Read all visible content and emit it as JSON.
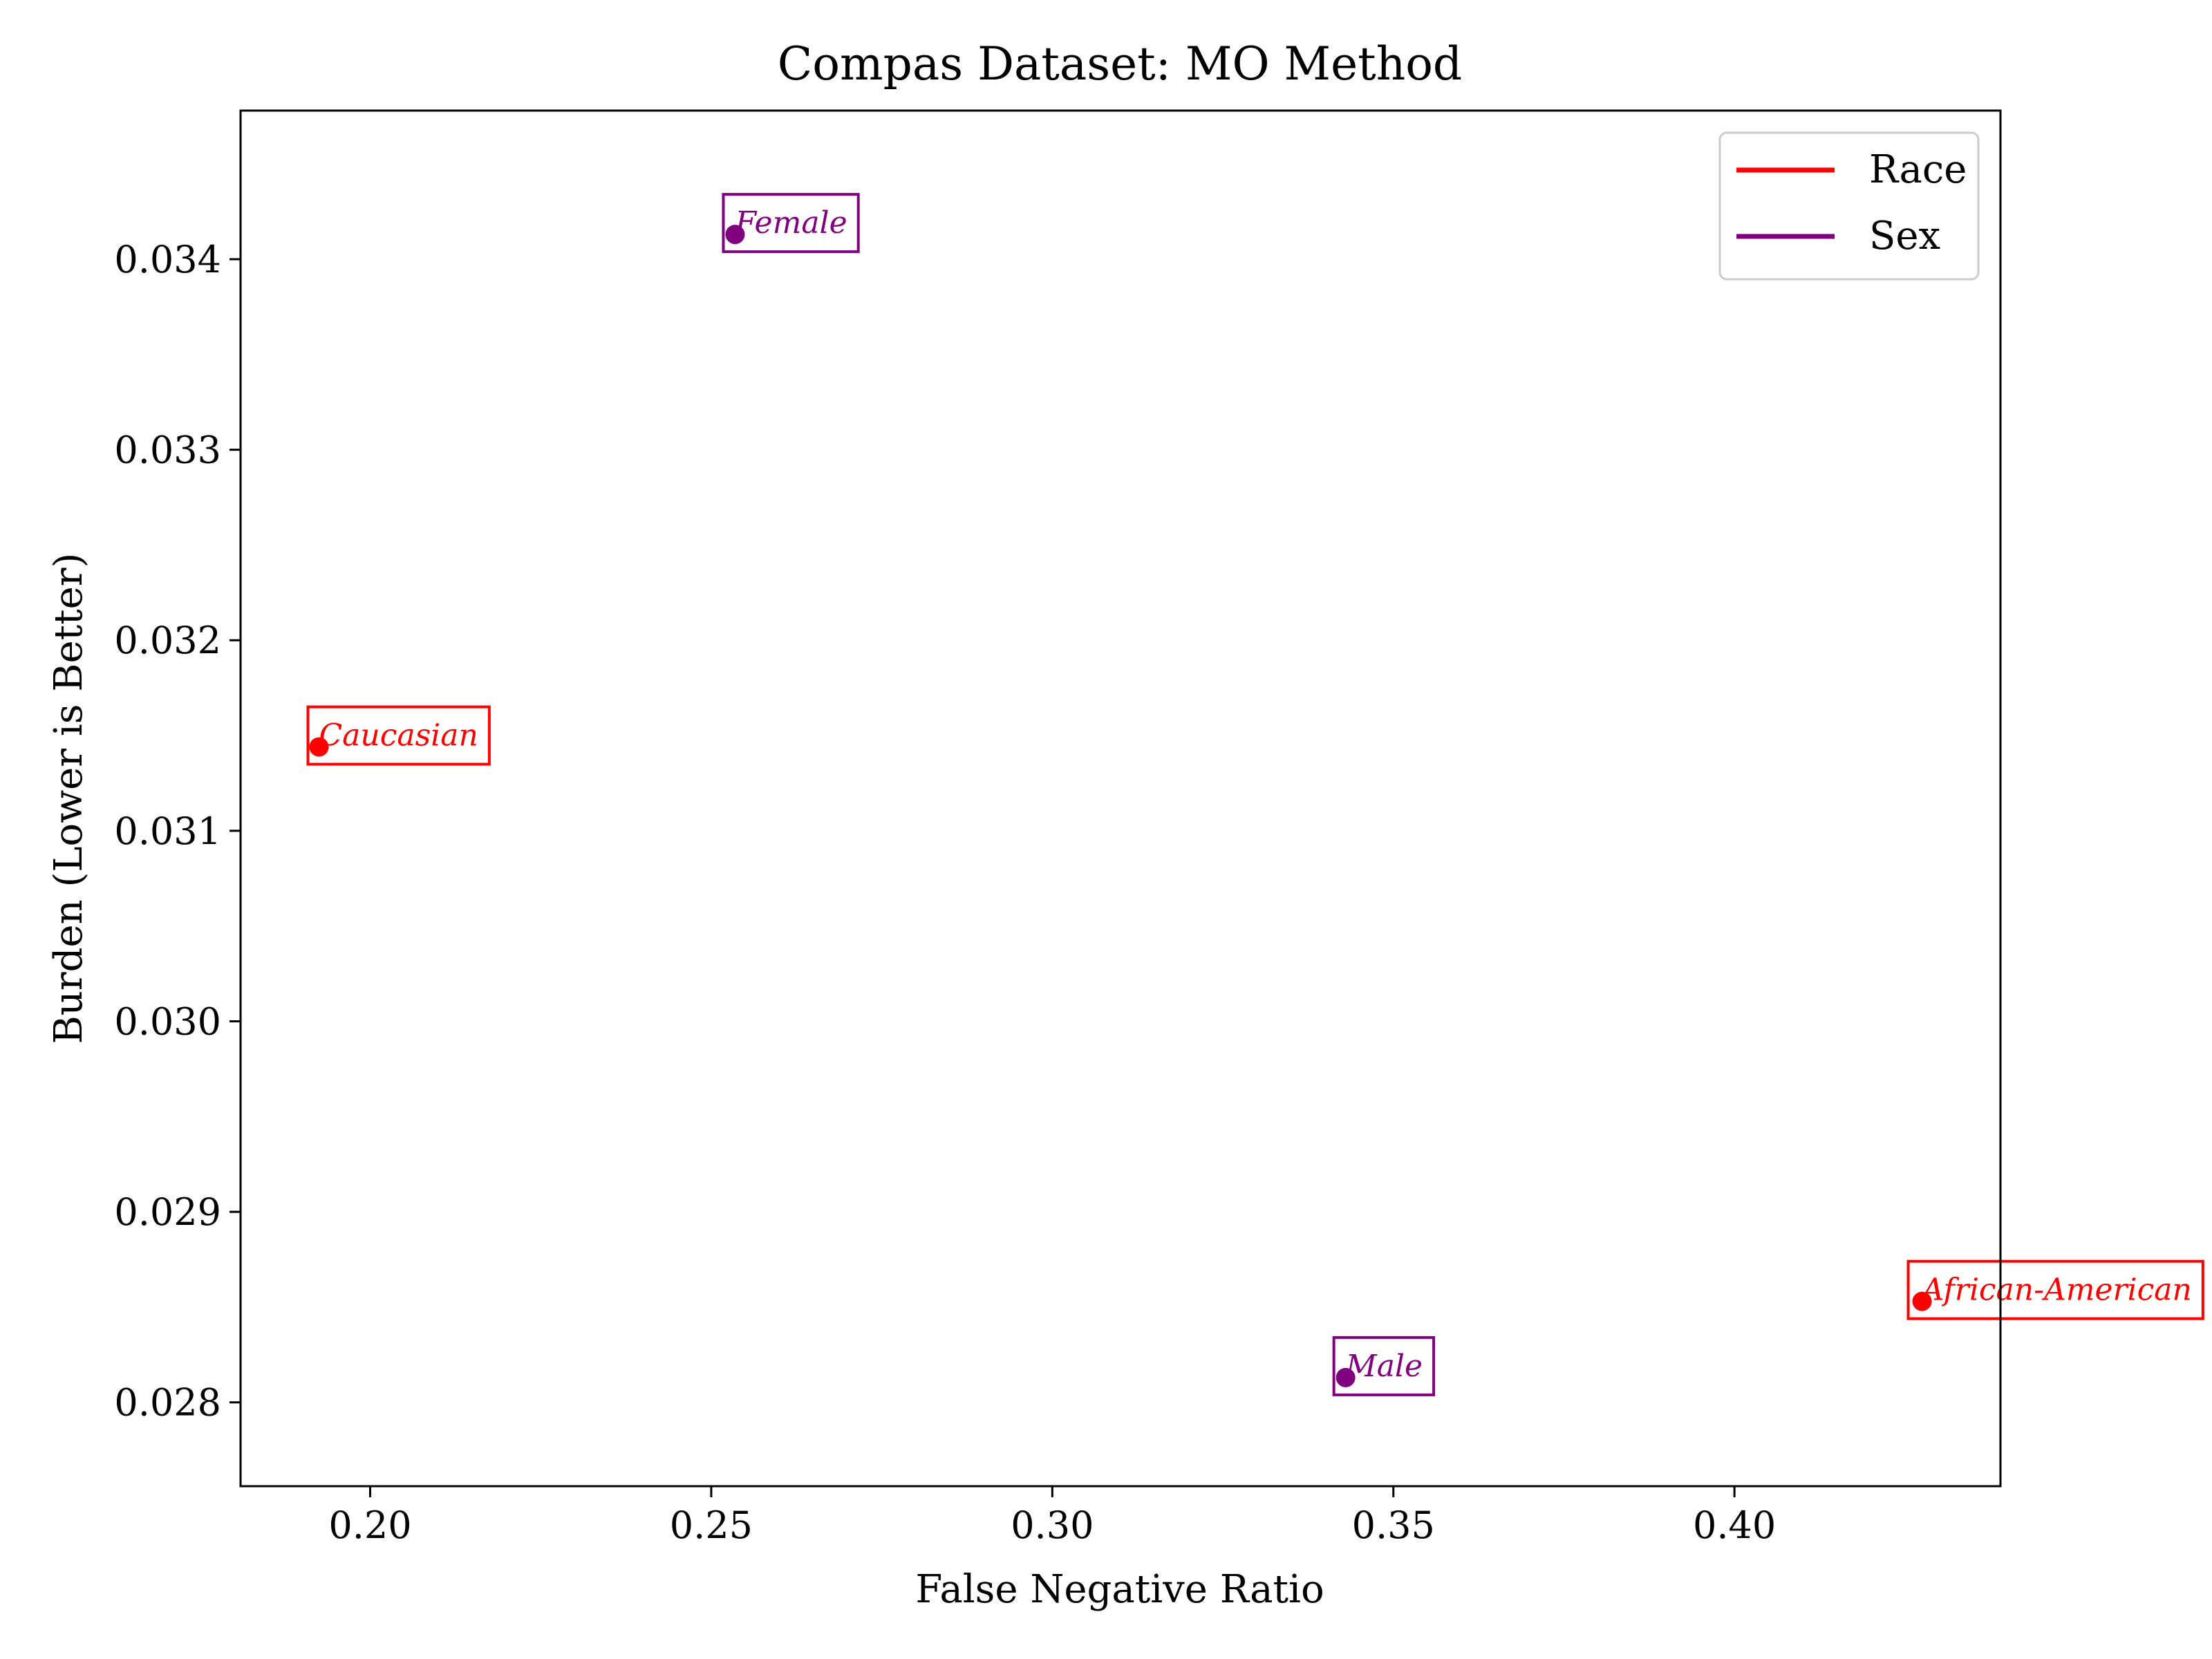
{
  "chart_data": {
    "type": "scatter",
    "title": "Compas Dataset: MO Method",
    "xlabel": "False Negative Ratio",
    "ylabel": "Burden (Lower is Better)",
    "xlim": [
      0.181,
      0.439
    ],
    "ylim": [
      0.02756,
      0.03478
    ],
    "xticks": [
      0.2,
      0.25,
      0.3,
      0.35,
      0.4
    ],
    "xtick_labels": [
      "0.20",
      "0.25",
      "0.30",
      "0.35",
      "0.40"
    ],
    "yticks": [
      0.028,
      0.029,
      0.03,
      0.031,
      0.032,
      0.033,
      0.034
    ],
    "ytick_labels": [
      "0.028",
      "0.029",
      "0.030",
      "0.031",
      "0.032",
      "0.033",
      "0.034"
    ],
    "grid": false,
    "legend_position": "top-right",
    "series": [
      {
        "name": "Race",
        "color": "#ff0000",
        "points": [
          {
            "label": "Caucasian",
            "x": 0.1925,
            "y": 0.03144
          },
          {
            "label": "African-American",
            "x": 0.4275,
            "y": 0.02853
          }
        ]
      },
      {
        "name": "Sex",
        "color": "#800080",
        "points": [
          {
            "label": "Female",
            "x": 0.2535,
            "y": 0.03413
          },
          {
            "label": "Male",
            "x": 0.343,
            "y": 0.02813
          }
        ]
      }
    ]
  }
}
